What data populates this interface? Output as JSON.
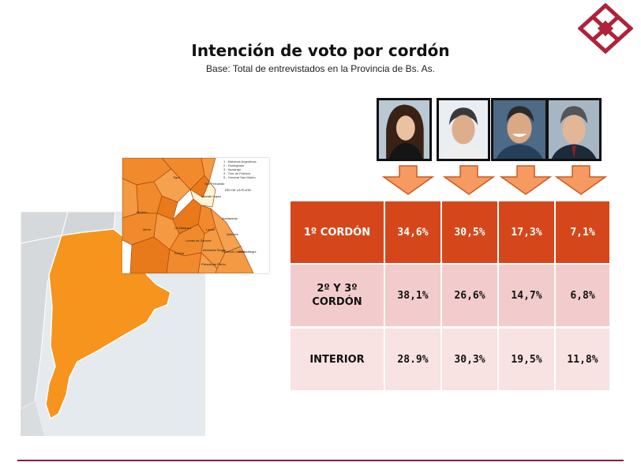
{
  "slide": {
    "title": "Intención de voto por cordón",
    "subtitle": "Base: Total de entrevistados en la Provincia de Bs. As."
  },
  "inset_map": {
    "legend": [
      "1 - Malvinas Argentinas",
      "2 - Hurlingham",
      "3 - Ituzaingó",
      "4 - Tres de Febrero",
      "5 - General San Martín"
    ],
    "river_label": "RÍO DE LA PLATA",
    "districts": [
      "Tigre",
      "San Fernando",
      "Vicente López",
      "Avellaneda",
      "Moreno",
      "Merlo",
      "La Matanza",
      "Ezeiza",
      "Quilmes",
      "Berazategui",
      "Lanús",
      "Lomas de Zamora",
      "Almirante Brown",
      "Florencio Varela",
      "Presidente Perón"
    ]
  },
  "table": {
    "rows": [
      {
        "label": "1º CORDÓN",
        "values": [
          "34,6%",
          "30,5%",
          "17,3%",
          "7,1%"
        ]
      },
      {
        "label": "2º Y 3º CORDÓN",
        "values": [
          "38,1%",
          "26,6%",
          "14,7%",
          "6,8%"
        ]
      },
      {
        "label": "INTERIOR",
        "values": [
          "28.9%",
          "30,3%",
          "19,5%",
          "11,8%"
        ]
      }
    ]
  },
  "colors": {
    "accent_orange": "#d5471b",
    "row2_bg": "#f2cccc",
    "row3_bg": "#f8e2e2",
    "rule": "#8b1b3c",
    "arrow": "#f79a62",
    "map_orange": "#f7941d"
  },
  "icons": {
    "logo": "diamond-lattice-logo-icon",
    "arrow": "down-arrow-icon"
  }
}
